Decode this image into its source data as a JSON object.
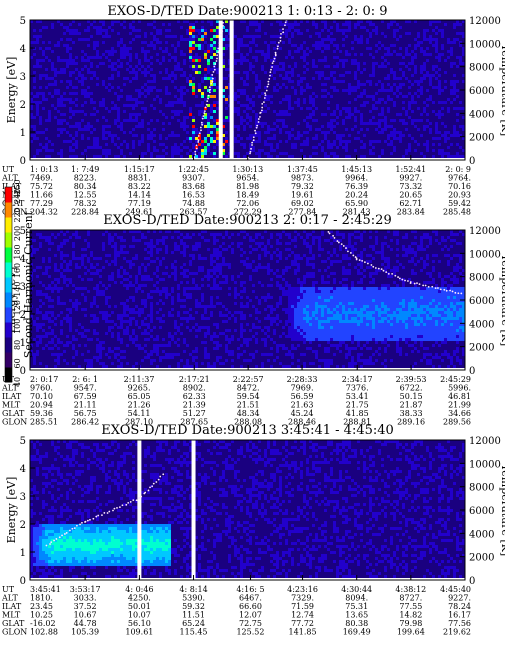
{
  "colorbar": {
    "label": "Second Harmonic Current",
    "ticks": [
      "40",
      "60",
      "80",
      "100",
      "120",
      "140",
      "160",
      "180",
      "200",
      "220",
      "240",
      "250"
    ],
    "colors": [
      "#000000",
      "#330066",
      "#1a0080",
      "#2200cc",
      "#2244ff",
      "#0088ff",
      "#00c8ff",
      "#00ffd0",
      "#00ff40",
      "#a0ff00",
      "#ffee00",
      "#ff8800",
      "#ff0000"
    ]
  },
  "axis": {
    "ylabel_left": "Energy [eV]",
    "ylabel_right": "Temperature [K]",
    "yticks_left": [
      "0",
      "1",
      "2",
      "3",
      "4",
      "5"
    ],
    "yticks_right": [
      "0",
      "2000",
      "4000",
      "6000",
      "8000",
      "10000",
      "12000"
    ]
  },
  "row_labels": [
    "UT",
    "ALT",
    "ILAT",
    "MLT",
    "GLAT",
    "GLON"
  ],
  "panels": [
    {
      "title": "EXOS-D/TED   Date:900213  1: 0:13 - 2: 0: 9",
      "columns": [
        [
          "1: 0:13",
          "7469.",
          "75.72",
          "11.66",
          "77.29",
          "204.32"
        ],
        [
          "1: 7:49",
          "8223.",
          "80.34",
          "12.55",
          "78.32",
          "228.84"
        ],
        [
          "1:15:17",
          "8831.",
          "83.22",
          "14.14",
          "77.19",
          "249.61"
        ],
        [
          "1:22:45",
          "9307.",
          "83.68",
          "16.53",
          "74.88",
          "263.57"
        ],
        [
          "1:30:13",
          "9654.",
          "81.98",
          "18.49",
          "72.06",
          "272.29"
        ],
        [
          "1:37:45",
          "9873.",
          "79.32",
          "19.61",
          "69.02",
          "277.84"
        ],
        [
          "1:45:13",
          "9964.",
          "76.39",
          "20.24",
          "65.90",
          "281.43"
        ],
        [
          "1:52:41",
          "9927.",
          "73.32",
          "20.65",
          "62.71",
          "283.84"
        ],
        [
          "2: 0: 9",
          "9764.",
          "70.16",
          "20.93",
          "59.42",
          "285.48"
        ]
      ]
    },
    {
      "title": "EXOS-D/TED   Date:900213  2: 0:17 - 2:45:29",
      "columns": [
        [
          "2: 0:17",
          "9760.",
          "70.10",
          "20.94",
          "59.36",
          "285.51"
        ],
        [
          "2: 6: 1",
          "9547.",
          "67.59",
          "21.11",
          "56.75",
          "286.42"
        ],
        [
          "2:11:37",
          "9265.",
          "65.05",
          "21.26",
          "54.11",
          "287.10"
        ],
        [
          "2:17:21",
          "8902.",
          "62.33",
          "21.39",
          "51.27",
          "287.65"
        ],
        [
          "2:22:57",
          "8472.",
          "59.54",
          "21.51",
          "48.34",
          "288.08"
        ],
        [
          "2:28:33",
          "7969.",
          "56.59",
          "21.63",
          "45.24",
          "288.46"
        ],
        [
          "2:34:17",
          "7376.",
          "53.41",
          "21.75",
          "41.85",
          "288.81"
        ],
        [
          "2:39:53",
          "6722.",
          "50.15",
          "21.87",
          "38.33",
          "289.16"
        ],
        [
          "2:45:29",
          "5996.",
          "46.81",
          "21.99",
          "34.66",
          "289.56"
        ]
      ]
    },
    {
      "title": "EXOS-D/TED   Date:900213  3:45:41 - 4:45:40",
      "columns": [
        [
          "3:45:41",
          "1810.",
          "23.45",
          "10.25",
          "-16.02",
          "102.88"
        ],
        [
          "3:53:17",
          "3033.",
          "37.52",
          "10.67",
          "44.78",
          "105.39"
        ],
        [
          "4: 0:46",
          "4250.",
          "50.01",
          "10.07",
          "56.10",
          "109.61"
        ],
        [
          "4: 8:14",
          "5390.",
          "59.32",
          "11.51",
          "65.24",
          "115.45"
        ],
        [
          "4:16: 5",
          "6467.",
          "66.60",
          "12.07",
          "72.75",
          "125.52"
        ],
        [
          "4:23:16",
          "7329.",
          "71.59",
          "12.74",
          "77.72",
          "141.85"
        ],
        [
          "4:30:44",
          "8094.",
          "75.31",
          "13.65",
          "80.38",
          "169.49"
        ],
        [
          "4:38:12",
          "8727.",
          "77.55",
          "14.82",
          "79.98",
          "199.64"
        ],
        [
          "4:45:40",
          "9227.",
          "78.24",
          "16.17",
          "77.56",
          "219.62"
        ]
      ]
    }
  ],
  "chart_data": [
    {
      "type": "heatmap",
      "title": "EXOS-D/TED   Date:900213  1: 0:13 - 2: 0: 9",
      "ylabel": "Energy [eV]",
      "ylim": [
        0,
        5
      ],
      "y2label": "Temperature [K]",
      "y2lim": [
        0,
        12000
      ],
      "x": [
        "1: 0:13",
        "1: 7:49",
        "1:15:17",
        "1:22:45",
        "1:30:13",
        "1:37:45",
        "1:45:13",
        "1:52:41",
        "2: 0: 9"
      ],
      "colorbar_range": [
        40,
        250
      ],
      "background_level": 85,
      "data_gaps": [
        "1:26:30",
        "1:28:00"
      ],
      "features": [
        {
          "kind": "high-intensity spikes",
          "x_range": [
            "1:22:00",
            "1:27:30"
          ],
          "energy_range": [
            0,
            5
          ],
          "level": 240
        },
        {
          "kind": "temperature trace",
          "points": [
            [
              "1:30:13",
              0
            ],
            [
              "1:32:00",
              4000
            ],
            [
              "1:34:00",
              9000
            ],
            [
              "1:35:30",
              12000
            ]
          ]
        },
        {
          "kind": "temperature trace",
          "points": [
            [
              "1:22:45",
              0
            ],
            [
              "1:25:00",
              6000
            ],
            [
              "1:27:00",
              12000
            ]
          ]
        }
      ]
    },
    {
      "type": "heatmap",
      "title": "EXOS-D/TED   Date:900213  2: 0:17 - 2:45:29",
      "ylabel": "Energy [eV]",
      "ylim": [
        0,
        5
      ],
      "y2label": "Temperature [K]",
      "y2lim": [
        0,
        12000
      ],
      "x": [
        "2: 0:17",
        "2: 6: 1",
        "2:11:37",
        "2:17:21",
        "2:22:57",
        "2:28:33",
        "2:34:17",
        "2:39:53",
        "2:45:29"
      ],
      "colorbar_range": [
        40,
        250
      ],
      "background_level": 85,
      "features": [
        {
          "kind": "enhancement band",
          "x_range": [
            "2:27:00",
            "2:45:29"
          ],
          "energy_range": [
            1.0,
            3.0
          ],
          "level": 125
        },
        {
          "kind": "temperature trace",
          "points": [
            [
              "2:31:00",
              12000
            ],
            [
              "2:34:17",
              9500
            ],
            [
              "2:39:53",
              7500
            ],
            [
              "2:45:29",
              6500
            ]
          ]
        }
      ]
    },
    {
      "type": "heatmap",
      "title": "EXOS-D/TED   Date:900213  3:45:41 - 4:45:40",
      "ylabel": "Energy [eV]",
      "ylim": [
        0,
        5
      ],
      "y2label": "Temperature [K]",
      "y2lim": [
        0,
        12000
      ],
      "x": [
        "3:45:41",
        "3:53:17",
        "4: 0:46",
        "4: 8:14",
        "4:16: 5",
        "4:23:16",
        "4:30:44",
        "4:38:12",
        "4:45:40"
      ],
      "colorbar_range": [
        40,
        250
      ],
      "background_level": 85,
      "data_gaps": [
        "4: 0:46",
        "4: 8:14"
      ],
      "features": [
        {
          "kind": "enhancement band",
          "x_range": [
            "3:45:41",
            "4: 5:00"
          ],
          "energy_range": [
            0.5,
            2.0
          ],
          "level": 160
        },
        {
          "kind": "temperature trace",
          "points": [
            [
              "3:48:00",
              3000
            ],
            [
              "3:53:17",
              5000
            ],
            [
              "4: 0:46",
              7000
            ],
            [
              "4: 4:00",
              9000
            ]
          ]
        }
      ]
    }
  ]
}
